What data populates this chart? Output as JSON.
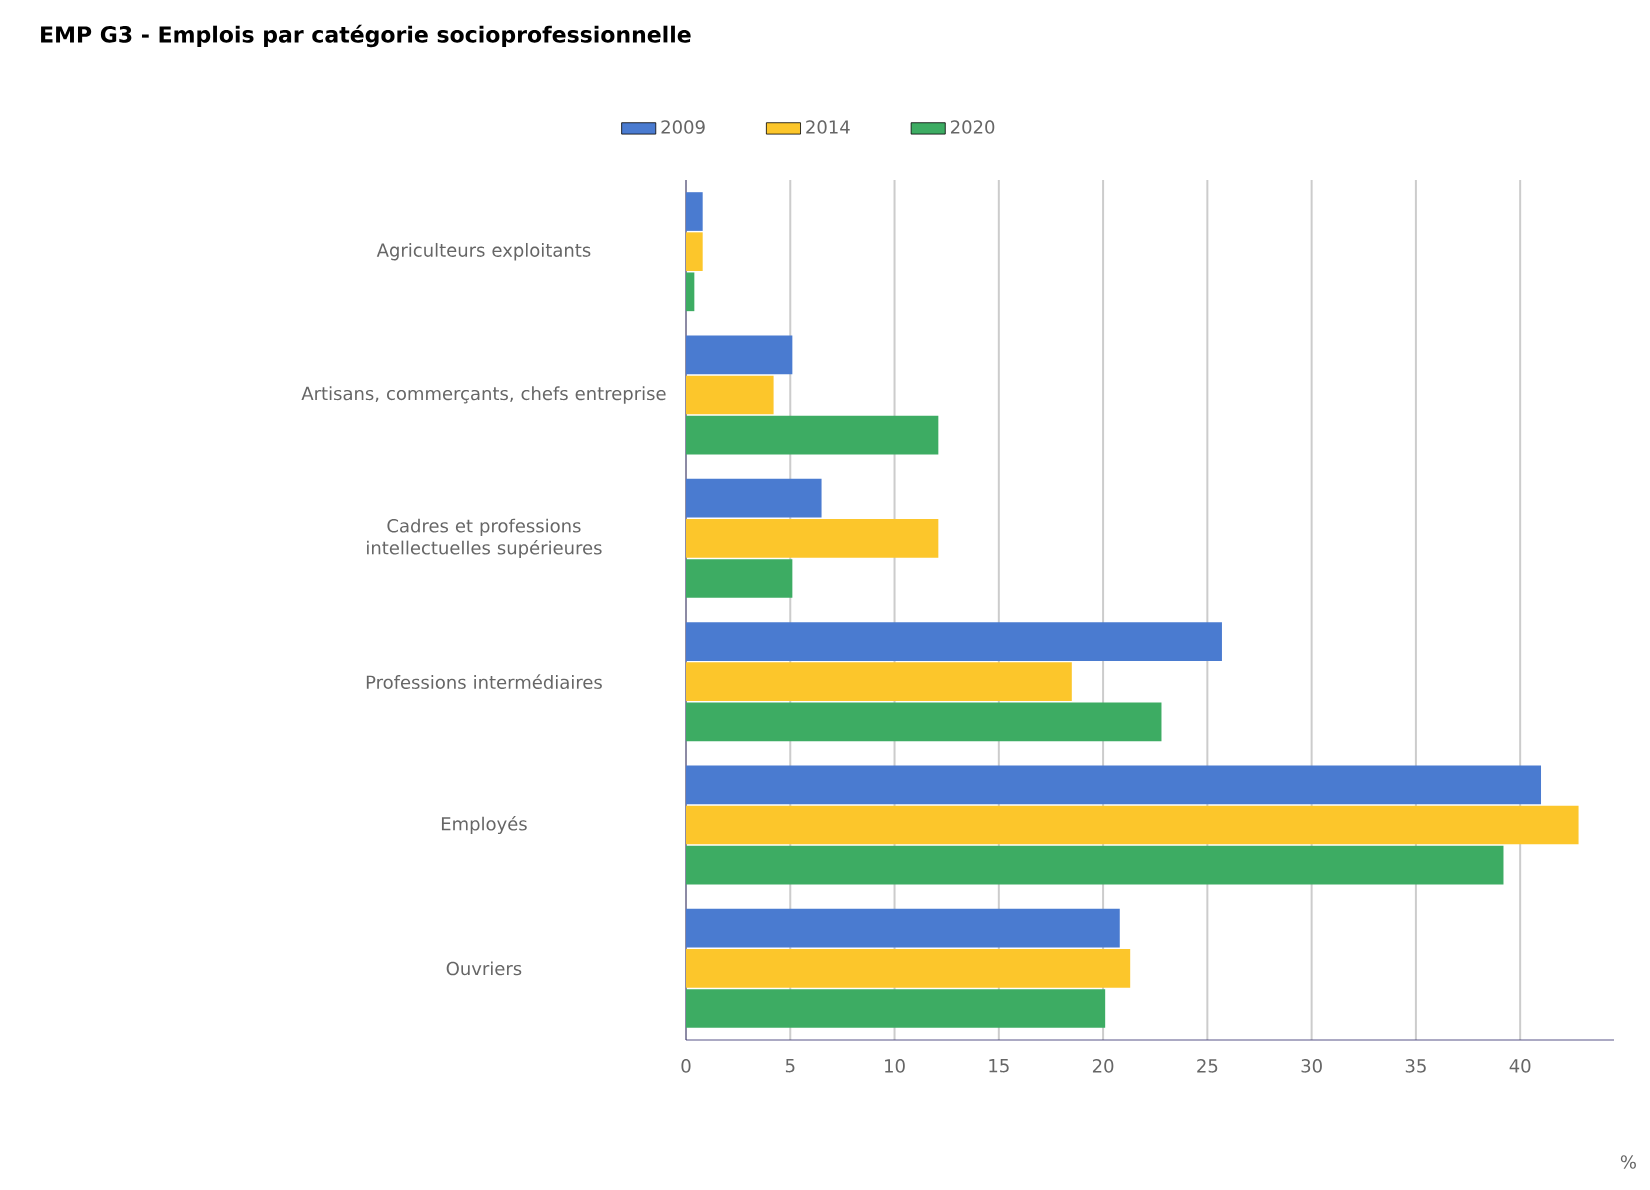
{
  "chart_data": {
    "type": "bar",
    "orientation": "horizontal",
    "title": "EMP G3 - Emplois par catégorie socioprofessionnelle",
    "xlabel": "%",
    "categories": [
      "Agriculteurs exploitants",
      "Artisans, commerçants, chefs entreprise",
      "Cadres et professions intellectuelles supérieures",
      "Professions intermédiaires",
      "Employés",
      "Ouvriers"
    ],
    "series": [
      {
        "name": "2009",
        "color": "#4a7bd0",
        "values": [
          0.8,
          5.1,
          6.5,
          25.7,
          41.0,
          20.8
        ]
      },
      {
        "name": "2014",
        "color": "#fcc62b",
        "values": [
          0.8,
          4.2,
          12.1,
          18.5,
          42.8,
          21.3
        ]
      },
      {
        "name": "2020",
        "color": "#3dac63",
        "values": [
          0.4,
          12.1,
          5.1,
          22.8,
          39.2,
          20.1
        ]
      }
    ],
    "xlim": [
      0,
      44.5
    ],
    "xticks": [
      0,
      5,
      10,
      15,
      20,
      25,
      30,
      35,
      40
    ],
    "grid": "x",
    "legend": "top"
  }
}
